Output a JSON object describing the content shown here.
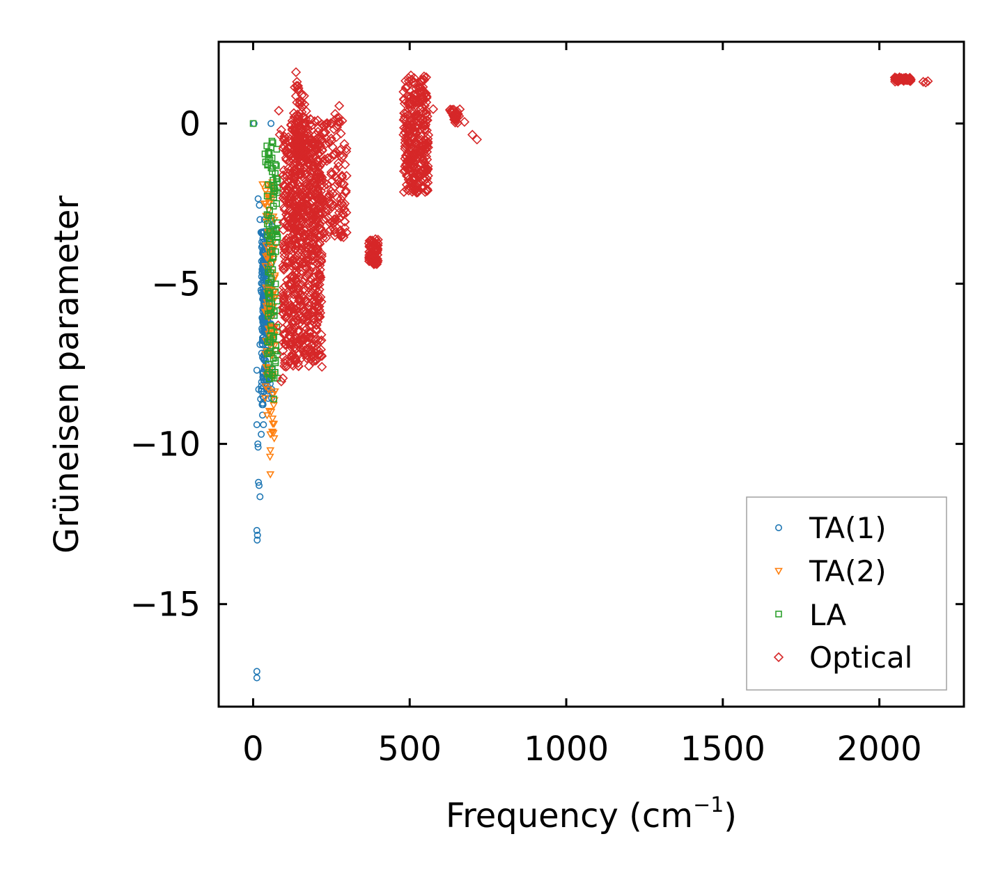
{
  "chart_data": {
    "type": "scatter",
    "title": "",
    "xlabel": "Frequency (cm",
    "xlabel_sup": "−1",
    "xlabel_close": ")",
    "ylabel": "Grüneisen parameter",
    "xlim": [
      -110,
      2270
    ],
    "ylim": [
      -18.2,
      2.55
    ],
    "xticks": [
      0,
      500,
      1000,
      1500,
      2000
    ],
    "xtick_labels": [
      "0",
      "500",
      "1000",
      "1500",
      "2000"
    ],
    "yticks": [
      0,
      -5,
      -10,
      -15
    ],
    "ytick_labels": [
      "0",
      "−5",
      "−10",
      "−15"
    ],
    "grid": false,
    "legend_position": "lower-right",
    "series": [
      {
        "name": "TA(1)",
        "marker": "circle",
        "color": "#1f77b4",
        "points": [
          [
            3,
            0.0
          ],
          [
            57,
            0.0
          ],
          [
            12,
            -7.7
          ],
          [
            12,
            -9.4
          ],
          [
            15,
            -10.0
          ],
          [
            16,
            -10.1
          ],
          [
            17,
            -11.2
          ],
          [
            19,
            -11.3
          ],
          [
            22,
            -11.65
          ],
          [
            12,
            -12.7
          ],
          [
            14,
            -12.85
          ],
          [
            13,
            -13.0
          ],
          [
            12,
            -17.1
          ],
          [
            12,
            -17.3
          ],
          [
            16,
            -2.35
          ],
          [
            20,
            -2.55
          ],
          [
            22,
            -3.0
          ],
          [
            25,
            -3.4
          ],
          [
            27,
            -4.3
          ],
          [
            25,
            -5.2
          ],
          [
            28,
            -6.4
          ],
          [
            30,
            -7.3
          ],
          [
            24,
            -8.6
          ],
          [
            26,
            -9.7
          ],
          [
            30,
            -9.1
          ],
          [
            33,
            -9.4
          ],
          [
            18,
            -8.3
          ],
          [
            22,
            -6.9
          ],
          [
            36,
            -3.0
          ],
          [
            40,
            -3.5
          ]
        ],
        "bands": [
          {
            "x": [
              26,
              48
            ],
            "y": [
              -8.8,
              -3.3
            ],
            "n": 140
          },
          {
            "x": [
              30,
              44
            ],
            "y": [
              -6.5,
              -4.2
            ],
            "n": 60
          },
          {
            "x": [
              45,
              62
            ],
            "y": [
              -8.6,
              -2.7
            ],
            "n": 50
          }
        ]
      },
      {
        "name": "TA(2)",
        "marker": "triangle-down",
        "color": "#ff7f0e",
        "points": [
          [
            30,
            -1.9
          ],
          [
            40,
            -2.1
          ],
          [
            50,
            -2.3
          ],
          [
            58,
            -9.0
          ],
          [
            55,
            -9.7
          ],
          [
            55,
            -10.2
          ],
          [
            54,
            -10.4
          ],
          [
            55,
            -10.95
          ],
          [
            35,
            -2.5
          ],
          [
            62,
            -6.0
          ]
        ],
        "bands": [
          {
            "x": [
              38,
              70
            ],
            "y": [
              -10.0,
              -1.8
            ],
            "n": 120
          }
        ]
      },
      {
        "name": "LA",
        "marker": "square",
        "color": "#2ca02c",
        "points": [
          [
            0,
            0.0
          ],
          [
            60,
            -0.55
          ],
          [
            63,
            -0.6
          ],
          [
            57,
            -0.75
          ],
          [
            38,
            -0.95
          ],
          [
            44,
            -0.7
          ],
          [
            50,
            -0.9
          ],
          [
            40,
            -1.2
          ],
          [
            46,
            -1.3
          ],
          [
            62,
            -1.4
          ],
          [
            68,
            -2.0
          ],
          [
            75,
            -2.5
          ],
          [
            78,
            -7.95
          ],
          [
            70,
            -7.1
          ],
          [
            66,
            -8.6
          ],
          [
            72,
            -4.0
          ]
        ],
        "bands": [
          {
            "x": [
              44,
              78
            ],
            "y": [
              -8.0,
              -0.8
            ],
            "n": 110
          }
        ]
      },
      {
        "name": "Optical",
        "marker": "diamond",
        "color": "#d62728",
        "points": [
          [
            137,
            1.6
          ],
          [
            82,
            0.4
          ],
          [
            140,
            1.3
          ],
          [
            145,
            1.1
          ],
          [
            262,
            0.3
          ],
          [
            275,
            0.55
          ],
          [
            575,
            0.45
          ],
          [
            650,
            0.3
          ],
          [
            675,
            0.05
          ],
          [
            700,
            -0.35
          ],
          [
            715,
            -0.5
          ],
          [
            90,
            -0.2
          ],
          [
            85,
            -0.35
          ],
          [
            80,
            -6.3
          ],
          [
            95,
            -7.95
          ],
          [
            90,
            -8.05
          ],
          [
            125,
            -7.2
          ],
          [
            140,
            -6.8
          ],
          [
            172,
            -6.1
          ],
          [
            200,
            -3.9
          ],
          [
            2052,
            1.4
          ],
          [
            2058,
            1.38
          ],
          [
            2065,
            1.4
          ],
          [
            2072,
            1.37
          ],
          [
            2080,
            1.38
          ],
          [
            2090,
            1.35
          ],
          [
            2100,
            1.36
          ],
          [
            2140,
            1.3
          ],
          [
            2148,
            1.28
          ],
          [
            2155,
            1.32
          ]
        ],
        "bands": [
          {
            "x": [
              95,
              220
            ],
            "y": [
              -7.6,
              -0.4
            ],
            "n": 700
          },
          {
            "x": [
              120,
              300
            ],
            "y": [
              -3.6,
              0.2
            ],
            "n": 300
          },
          {
            "x": [
              130,
              170
            ],
            "y": [
              -1.0,
              1.2
            ],
            "n": 60
          },
          {
            "x": [
              370,
              400
            ],
            "y": [
              -4.4,
              -3.6
            ],
            "n": 80
          },
          {
            "x": [
              480,
              560
            ],
            "y": [
              -2.2,
              1.5
            ],
            "n": 320
          },
          {
            "x": [
              628,
              660
            ],
            "y": [
              0.0,
              0.45
            ],
            "n": 30
          },
          {
            "x": [
              2048,
              2100
            ],
            "y": [
              1.3,
              1.45
            ],
            "n": 40
          }
        ]
      }
    ]
  }
}
